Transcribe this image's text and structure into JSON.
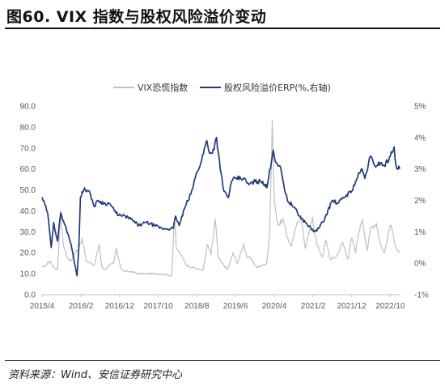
{
  "header": {
    "title": "图60. VIX 指数与股权风险溢价变动"
  },
  "footer": {
    "source": "资料来源：Wind、安信证券研究中心"
  },
  "colors": {
    "vix": "#c0c0c0",
    "erp": "#1f3a7a",
    "axis": "#bfbfbf"
  },
  "chart_data": {
    "type": "line",
    "title": "",
    "legend_position": "top-center",
    "x_axis": {
      "ticks": [
        "2015/4",
        "2016/2",
        "2016/12",
        "2017/10",
        "2018/8",
        "2019/6",
        "2020/4",
        "2021/2",
        "2021/12",
        "2022/10"
      ]
    },
    "y_left": {
      "min": 0,
      "max": 90,
      "ticks": [
        "0.0",
        "10.0",
        "20.0",
        "30.0",
        "40.0",
        "50.0",
        "60.0",
        "70.0",
        "80.0",
        "90.0"
      ]
    },
    "y_right": {
      "min": -1,
      "max": 5,
      "ticks": [
        "-1%",
        "0%",
        "1%",
        "2%",
        "3%",
        "4%",
        "5%"
      ]
    },
    "series": [
      {
        "name": "VIX恐慌指数",
        "axis": "left",
        "x": [
          "2015-04-01",
          "2015-05-01",
          "2015-06-01",
          "2015-07-01",
          "2015-08-01",
          "2015-08-24",
          "2015-09-15",
          "2015-10-15",
          "2015-11-15",
          "2015-12-15",
          "2016-01-15",
          "2016-02-11",
          "2016-03-15",
          "2016-04-15",
          "2016-05-15",
          "2016-06-24",
          "2016-07-15",
          "2016-08-15",
          "2016-09-15",
          "2016-10-15",
          "2016-11-04",
          "2016-12-15",
          "2017-01-15",
          "2017-03-01",
          "2017-05-01",
          "2017-07-01",
          "2017-09-01",
          "2017-11-01",
          "2018-01-15",
          "2018-02-06",
          "2018-02-20",
          "2018-03-20",
          "2018-04-15",
          "2018-05-15",
          "2018-07-01",
          "2018-08-20",
          "2018-09-20",
          "2018-10-24",
          "2018-11-20",
          "2018-12-24",
          "2019-01-15",
          "2019-02-15",
          "2019-04-01",
          "2019-05-13",
          "2019-06-15",
          "2019-08-05",
          "2019-09-01",
          "2019-10-01",
          "2019-11-15",
          "2020-01-01",
          "2020-02-01",
          "2020-02-24",
          "2020-03-16",
          "2020-04-01",
          "2020-05-01",
          "2020-06-11",
          "2020-07-15",
          "2020-08-15",
          "2020-09-08",
          "2020-10-28",
          "2020-12-01",
          "2021-01-27",
          "2021-03-01",
          "2021-04-15",
          "2021-05-12",
          "2021-06-15",
          "2021-08-01",
          "2021-09-20",
          "2021-11-01",
          "2021-12-01",
          "2022-01-01",
          "2022-01-25",
          "2022-02-24",
          "2022-04-01",
          "2022-05-01",
          "2022-06-13",
          "2022-07-15",
          "2022-08-15",
          "2022-09-30",
          "2022-10-15",
          "2022-11-15",
          "2022-12-15"
        ],
        "values": [
          13,
          14,
          16,
          13,
          12,
          40,
          24,
          18,
          16,
          20,
          22,
          27,
          16,
          15,
          14,
          24,
          13,
          12,
          14,
          15,
          22,
          12,
          11,
          11,
          10,
          10,
          10,
          10,
          9,
          37,
          22,
          20,
          17,
          14,
          13,
          12,
          12,
          24,
          19,
          36,
          18,
          15,
          12,
          20,
          15,
          24,
          18,
          17,
          13,
          14,
          15,
          28,
          83,
          45,
          33,
          36,
          27,
          23,
          30,
          38,
          22,
          37,
          24,
          18,
          26,
          17,
          18,
          25,
          17,
          27,
          20,
          30,
          36,
          21,
          32,
          34,
          24,
          20,
          33,
          31,
          22,
          20
        ]
      },
      {
        "name": "股权风险溢价ERP(%,右轴)",
        "axis": "right",
        "x": [
          "2015-04-01",
          "2015-05-15",
          "2015-06-12",
          "2015-07-01",
          "2015-08-01",
          "2015-08-26",
          "2015-09-30",
          "2015-11-15",
          "2016-01-01",
          "2016-01-15",
          "2016-01-28",
          "2016-03-01",
          "2016-04-15",
          "2016-05-15",
          "2016-06-15",
          "2016-08-01",
          "2016-09-15",
          "2016-11-01",
          "2016-12-15",
          "2017-01-15",
          "2017-03-01",
          "2017-05-01",
          "2017-07-01",
          "2017-09-01",
          "2017-11-01",
          "2018-01-26",
          "2018-02-15",
          "2018-03-15",
          "2018-05-01",
          "2018-06-15",
          "2018-08-01",
          "2018-09-01",
          "2018-10-18",
          "2018-11-01",
          "2018-12-01",
          "2019-01-03",
          "2019-02-01",
          "2019-03-01",
          "2019-04-08",
          "2019-05-01",
          "2019-06-01",
          "2019-08-01",
          "2019-09-15",
          "2019-11-01",
          "2020-01-01",
          "2020-02-03",
          "2020-03-23",
          "2020-04-15",
          "2020-05-15",
          "2020-06-15",
          "2020-07-13",
          "2020-09-01",
          "2020-10-15",
          "2020-12-01",
          "2021-02-10",
          "2021-03-15",
          "2021-05-01",
          "2021-07-01",
          "2021-08-15",
          "2021-10-01",
          "2021-12-01",
          "2022-01-01",
          "2022-02-15",
          "2022-03-15",
          "2022-04-26",
          "2022-06-01",
          "2022-07-15",
          "2022-08-15",
          "2022-10-01",
          "2022-10-31",
          "2022-11-15",
          "2022-12-15"
        ],
        "values": [
          2.1,
          1.6,
          0.5,
          1.3,
          0.7,
          1.6,
          1.2,
          0.6,
          -0.4,
          0.5,
          2.1,
          2.4,
          2.2,
          1.8,
          2.0,
          1.9,
          1.9,
          1.6,
          1.5,
          1.5,
          1.4,
          1.2,
          1.3,
          1.2,
          1.1,
          1.1,
          1.5,
          1.2,
          1.8,
          2.2,
          2.9,
          3.2,
          3.9,
          3.6,
          3.5,
          4.0,
          3.0,
          2.3,
          2.1,
          2.6,
          2.7,
          2.7,
          2.5,
          2.6,
          2.6,
          2.4,
          3.6,
          3.2,
          3.1,
          2.5,
          2.0,
          1.8,
          1.5,
          1.3,
          1.0,
          1.1,
          1.4,
          2.0,
          1.9,
          2.1,
          2.3,
          2.6,
          3.0,
          2.7,
          3.4,
          3.1,
          3.2,
          3.1,
          3.4,
          3.7,
          3.1,
          3.0
        ]
      }
    ]
  }
}
